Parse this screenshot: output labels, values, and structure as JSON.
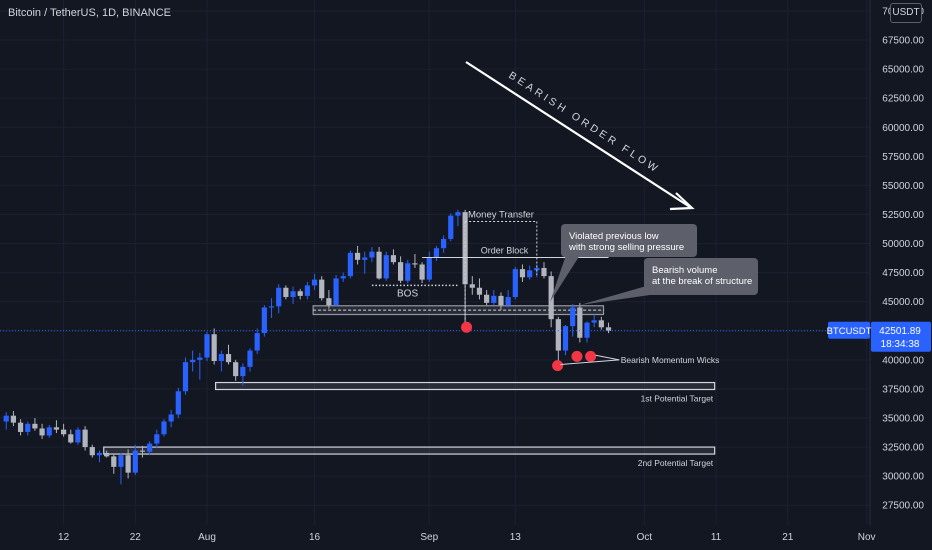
{
  "header": {
    "title": "Bitcoin / TetherUS, 1D, BINANCE",
    "currency": "USDT"
  },
  "price_label": {
    "symbol": "BTCUSDT",
    "price": "42501.89",
    "countdown": "18:34:38"
  },
  "colors": {
    "background": "#131722",
    "up": "#2962ff",
    "down": "#b2b5be",
    "text": "#d1d4dc",
    "marker": "#f23645",
    "price_line": "#2962ff"
  },
  "annotations": {
    "money_transfer": "Money Transfer",
    "order_block": "Order Block",
    "bos": "BOS",
    "bearish_flow": "BEARISH ORDER FLOW",
    "violated": [
      "Violated previous low",
      "with strong selling pressure"
    ],
    "bearish_volume": [
      "Bearish volume",
      "at the break of structure"
    ],
    "momentum_wicks": "Bearish Momentum Wicks",
    "target1": "1st Potential Target",
    "target2": "2nd Potential Target"
  },
  "chart_data": {
    "type": "candlestick",
    "y_ticks": [
      27500,
      30000,
      32500,
      35000,
      37500,
      40000,
      42500,
      45000,
      47500,
      50000,
      52500,
      55000,
      57500,
      60000,
      62500,
      65000,
      67500,
      70000
    ],
    "y_tick_labels": [
      "27500.00",
      "30000.00",
      "32500.00",
      "35000.00",
      "37500.00",
      "40000.00",
      "42500.00",
      "45000.00",
      "47500.00",
      "50000.00",
      "52500.00",
      "55000.00",
      "57500.00",
      "60000.00",
      "62500.00",
      "65000.00",
      "67500.00",
      "70000.00"
    ],
    "x_ticks": [
      {
        "label": "12",
        "day": -20
      },
      {
        "label": "22",
        "day": -10
      },
      {
        "label": "Aug",
        "day": 0
      },
      {
        "label": "16",
        "day": 15
      },
      {
        "label": "Sep",
        "day": 31
      },
      {
        "label": "13",
        "day": 43
      },
      {
        "label": "Oct",
        "day": 61
      },
      {
        "label": "11",
        "day": 71
      },
      {
        "label": "21",
        "day": 81
      },
      {
        "label": "Nov",
        "day": 92
      }
    ],
    "candles_ohlc": [
      [
        34700,
        35500,
        34000,
        35200
      ],
      [
        35200,
        35600,
        34300,
        34600
      ],
      [
        34600,
        34900,
        33500,
        33800
      ],
      [
        33800,
        34700,
        33500,
        34500
      ],
      [
        34500,
        35000,
        33900,
        34100
      ],
      [
        34100,
        34500,
        33200,
        33500
      ],
      [
        33500,
        34400,
        33300,
        34200
      ],
      [
        34200,
        34800,
        33700,
        34000
      ],
      [
        34000,
        34500,
        33400,
        33600
      ],
      [
        33600,
        34000,
        32800,
        32900
      ],
      [
        32900,
        34200,
        32700,
        34000
      ],
      [
        34000,
        34300,
        32200,
        32500
      ],
      [
        32500,
        32700,
        31600,
        31800
      ],
      [
        31800,
        32200,
        31200,
        32000
      ],
      [
        32000,
        32200,
        31600,
        31700
      ],
      [
        31700,
        31900,
        30200,
        30800
      ],
      [
        30800,
        32000,
        29300,
        31800
      ],
      [
        31800,
        32300,
        29800,
        30300
      ],
      [
        30300,
        32700,
        30100,
        32200
      ],
      [
        32200,
        32600,
        31600,
        32100
      ],
      [
        32100,
        33000,
        31800,
        32800
      ],
      [
        32800,
        34000,
        32400,
        33600
      ],
      [
        33600,
        34900,
        33400,
        34700
      ],
      [
        34700,
        35700,
        34200,
        35300
      ],
      [
        35300,
        37600,
        35000,
        37300
      ],
      [
        37300,
        40200,
        37000,
        39800
      ],
      [
        39800,
        40800,
        39000,
        40000
      ],
      [
        40000,
        40600,
        38300,
        40200
      ],
      [
        40200,
        42400,
        39900,
        42200
      ],
      [
        42200,
        42700,
        39600,
        39900
      ],
      [
        39900,
        40800,
        39000,
        40500
      ],
      [
        40500,
        41300,
        39600,
        39800
      ],
      [
        39800,
        40000,
        38200,
        38600
      ],
      [
        38600,
        39700,
        37800,
        39400
      ],
      [
        39400,
        41000,
        39000,
        40800
      ],
      [
        40800,
        42700,
        40500,
        42300
      ],
      [
        42300,
        44700,
        42000,
        44500
      ],
      [
        44500,
        45300,
        43600,
        44600
      ],
      [
        44600,
        46500,
        44000,
        46200
      ],
      [
        46200,
        46400,
        45200,
        45400
      ],
      [
        45400,
        46300,
        44800,
        45900
      ],
      [
        45900,
        46100,
        45200,
        45500
      ],
      [
        45500,
        46700,
        45200,
        46400
      ],
      [
        46400,
        47400,
        46000,
        46900
      ],
      [
        46900,
        47200,
        45100,
        45300
      ],
      [
        45300,
        46000,
        44400,
        44700
      ],
      [
        44700,
        47300,
        44600,
        47000
      ],
      [
        47000,
        47500,
        46700,
        47200
      ],
      [
        47200,
        49400,
        47000,
        49200
      ],
      [
        49200,
        49800,
        48200,
        48600
      ],
      [
        48600,
        49300,
        47400,
        48800
      ],
      [
        48800,
        49700,
        48400,
        49300
      ],
      [
        49300,
        49700,
        46900,
        47000
      ],
      [
        47000,
        49300,
        46800,
        49000
      ],
      [
        49000,
        49500,
        48200,
        48400
      ],
      [
        48400,
        48900,
        46600,
        46800
      ],
      [
        46800,
        48600,
        46600,
        48300
      ],
      [
        48300,
        49100,
        47900,
        48200
      ],
      [
        48200,
        48400,
        46600,
        46900
      ],
      [
        46900,
        49300,
        46700,
        48800
      ],
      [
        48800,
        49800,
        48500,
        49600
      ],
      [
        49600,
        50700,
        49200,
        50400
      ],
      [
        50400,
        52600,
        50200,
        52400
      ],
      [
        52400,
        52900,
        51500,
        52700
      ],
      [
        52700,
        52900,
        43000,
        46500
      ],
      [
        46500,
        47200,
        45600,
        46200
      ],
      [
        46200,
        47000,
        45200,
        45600
      ],
      [
        45600,
        46000,
        44700,
        44900
      ],
      [
        44900,
        46000,
        44700,
        45500
      ],
      [
        45500,
        45800,
        44300,
        44700
      ],
      [
        44700,
        46000,
        44500,
        45400
      ],
      [
        45400,
        48000,
        45200,
        47800
      ],
      [
        47800,
        48200,
        46700,
        47100
      ],
      [
        47100,
        48100,
        46900,
        47700
      ],
      [
        47700,
        48200,
        47100,
        47900
      ],
      [
        47900,
        48400,
        47000,
        47200
      ],
      [
        47200,
        47600,
        42800,
        43500
      ],
      [
        43500,
        43700,
        39800,
        40800
      ],
      [
        40800,
        43000,
        40400,
        42900
      ],
      [
        42900,
        44800,
        42000,
        44500
      ],
      [
        44500,
        44900,
        41500,
        41900
      ],
      [
        41900,
        43300,
        41500,
        43200
      ],
      [
        43200,
        43900,
        42800,
        43400
      ],
      [
        43400,
        43700,
        42600,
        42800
      ],
      [
        42800,
        43200,
        42300,
        42500
      ]
    ],
    "last_price": 42501.89
  }
}
